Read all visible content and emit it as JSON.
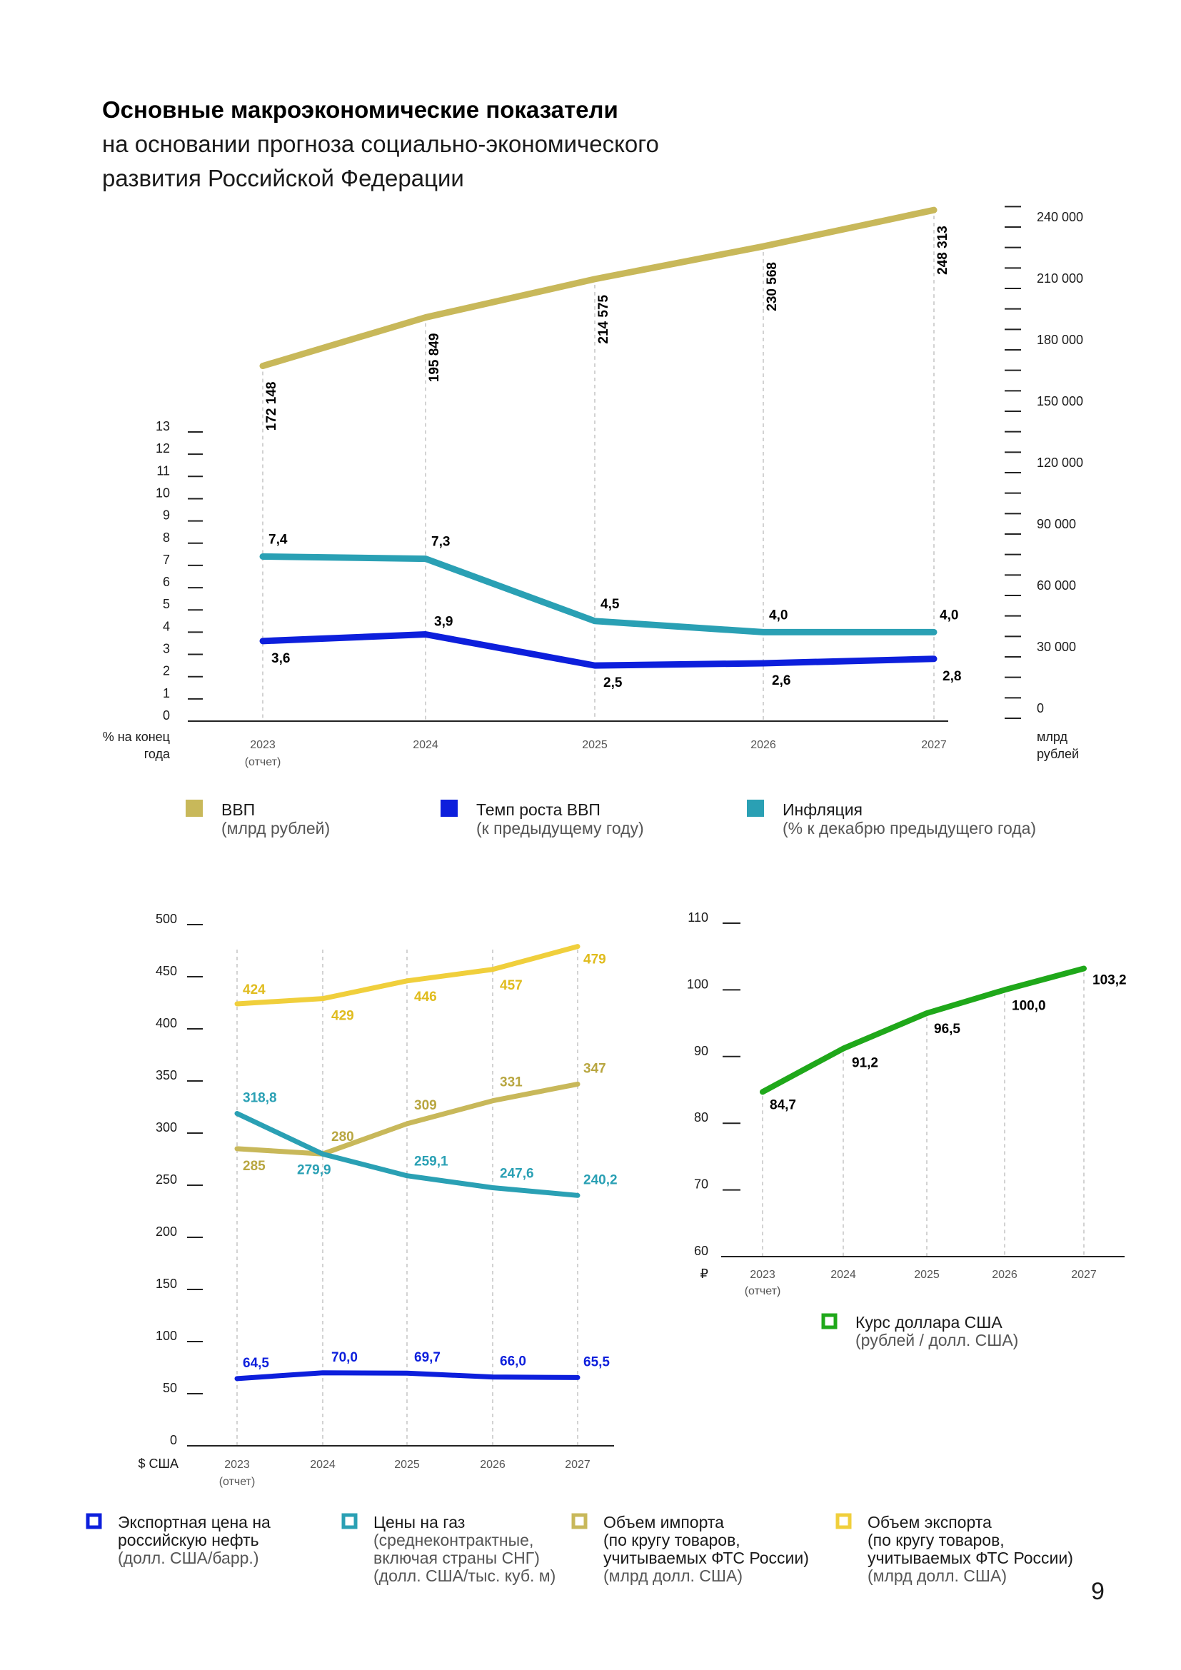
{
  "header": {
    "title": "Основные макроэкономические показатели",
    "subtitle_line1": "на основании прогноза социально-экономического",
    "subtitle_line2": "развития Российской Федерации"
  },
  "page_number": "9",
  "colors": {
    "gdp": "#c8b85a",
    "growth": "#0d1fdc",
    "inflation": "#2aa0b4",
    "oil": "#0d1fdc",
    "gas": "#2aa0b4",
    "import": "#c8b85a",
    "export": "#f0cf3c",
    "usd": "#1fa81a"
  },
  "chart_data": [
    {
      "type": "line",
      "categories": [
        "2023",
        "2024",
        "2025",
        "2026",
        "2027"
      ],
      "category_note": "(отчет)",
      "left_axis": {
        "label_line1": "% на конец",
        "label_line2": "года",
        "ylim": [
          0,
          13
        ],
        "ticks": [
          "0",
          "1",
          "2",
          "3",
          "4",
          "5",
          "6",
          "7",
          "8",
          "9",
          "10",
          "11",
          "12",
          "13"
        ]
      },
      "right_axis": {
        "label_line1": "млрд",
        "label_line2": "рублей",
        "ylim": [
          0,
          250000
        ],
        "tick_labels": [
          {
            "v": 0,
            "t": "0"
          },
          {
            "v": 30000,
            "t": "30 000"
          },
          {
            "v": 60000,
            "t": "60 000"
          },
          {
            "v": 90000,
            "t": "90 000"
          },
          {
            "v": 120000,
            "t": "120 000"
          },
          {
            "v": 150000,
            "t": "150 000"
          },
          {
            "v": 180000,
            "t": "180 000"
          },
          {
            "v": 210000,
            "t": "210 000"
          },
          {
            "v": 240000,
            "t": "240 000"
          }
        ]
      },
      "series": [
        {
          "key": "gdp",
          "axis": "right",
          "values": [
            172148,
            195849,
            214575,
            230568,
            248313
          ],
          "labels": [
            "172 148",
            "195 849",
            "214 575",
            "230 568",
            "248 313"
          ]
        },
        {
          "key": "inflation",
          "axis": "left",
          "values": [
            7.4,
            7.3,
            4.5,
            4.0,
            4.0
          ],
          "labels": [
            "7,4",
            "7,3",
            "4,5",
            "4,0",
            "4,0"
          ]
        },
        {
          "key": "growth",
          "axis": "left",
          "values": [
            3.6,
            3.9,
            2.5,
            2.6,
            2.8
          ],
          "labels": [
            "3,6",
            "3,9",
            "2,5",
            "2,6",
            "2,8"
          ]
        }
      ],
      "legend": [
        {
          "key": "gdp",
          "name": "ВВП",
          "sub": "(млрд рублей)"
        },
        {
          "key": "growth",
          "name": "Темп роста ВВП",
          "sub": "(к предыдущему году)"
        },
        {
          "key": "inflation",
          "name": "Инфляция",
          "sub": "(% к декабрю предыдущего года)"
        }
      ]
    },
    {
      "type": "line",
      "categories": [
        "2023",
        "2024",
        "2025",
        "2026",
        "2027"
      ],
      "category_note": "(отчет)",
      "y_axis": {
        "label": "$ США",
        "ylim": [
          0,
          500
        ],
        "ticks": [
          "0",
          "50",
          "100",
          "150",
          "200",
          "250",
          "300",
          "350",
          "400",
          "450",
          "500"
        ]
      },
      "series": [
        {
          "key": "export",
          "values": [
            424,
            429,
            446,
            457,
            479
          ],
          "labels": [
            "424",
            "429",
            "446",
            "457",
            "479"
          ]
        },
        {
          "key": "import",
          "values": [
            285,
            280,
            309,
            331,
            347
          ],
          "labels": [
            "285",
            "280",
            "309",
            "331",
            "347"
          ]
        },
        {
          "key": "gas",
          "values": [
            318.8,
            279.9,
            259.1,
            247.6,
            240.2
          ],
          "labels": [
            "318,8",
            "279,9",
            "259,1",
            "247,6",
            "240,2"
          ]
        },
        {
          "key": "oil",
          "values": [
            64.5,
            70.0,
            69.7,
            66.0,
            65.5
          ],
          "labels": [
            "64,5",
            "70,0",
            "69,7",
            "66,0",
            "65,5"
          ]
        }
      ],
      "legend": [
        {
          "key": "oil",
          "lines": [
            "Экспортная цена на",
            "российскую нефть"
          ],
          "sub": [
            "(долл. США/барр.)"
          ]
        },
        {
          "key": "gas",
          "lines": [
            "Цены на газ"
          ],
          "sub": [
            "(среднеконтрактные,",
            "включая страны СНГ)",
            "(долл. США/тыс. куб. м)"
          ]
        },
        {
          "key": "import",
          "lines": [
            "Объем импорта",
            "(по кругу товаров,",
            "учитываемых ФТС России)"
          ],
          "sub": [
            "(млрд долл. США)"
          ]
        },
        {
          "key": "export",
          "lines": [
            "Объем экспорта",
            "(по кругу товаров,",
            "учитываемых ФТС России)"
          ],
          "sub": [
            "(млрд долл. США)"
          ]
        }
      ]
    },
    {
      "type": "line",
      "categories": [
        "2023",
        "2024",
        "2025",
        "2026",
        "2027"
      ],
      "category_note": "(отчет)",
      "y_axis": {
        "label": "₽",
        "ylim": [
          60,
          110
        ],
        "ticks": [
          "60",
          "70",
          "80",
          "90",
          "100",
          "110"
        ]
      },
      "series": [
        {
          "key": "usd",
          "values": [
            84.7,
            91.2,
            96.5,
            100.0,
            103.2
          ],
          "labels": [
            "84,7",
            "91,2",
            "96,5",
            "100,0",
            "103,2"
          ]
        }
      ],
      "legend": [
        {
          "key": "usd",
          "name": "Курс доллара США",
          "sub": "(рублей / долл. США)"
        }
      ]
    }
  ]
}
